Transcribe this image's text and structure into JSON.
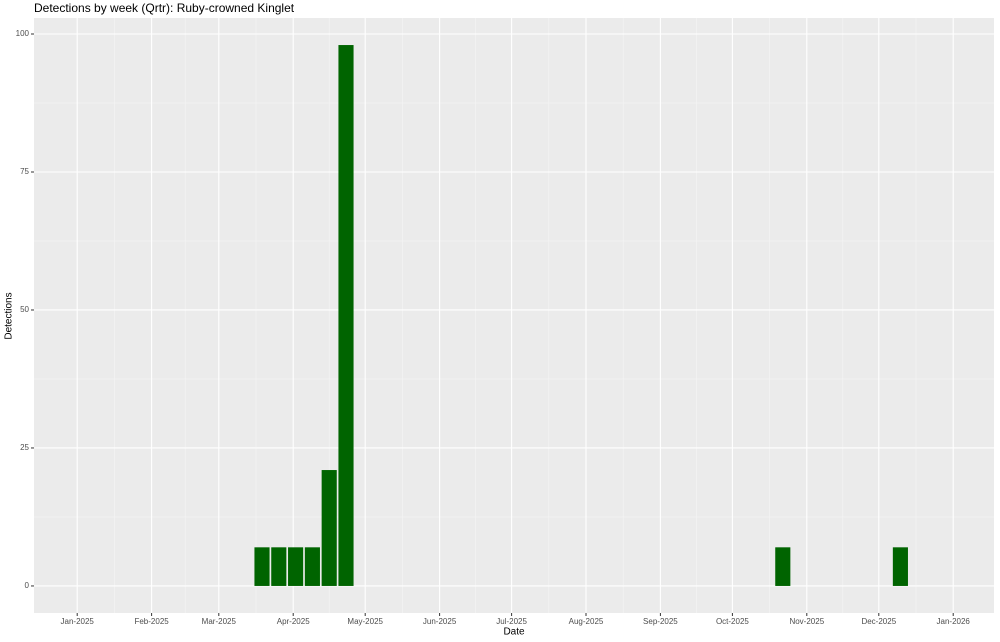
{
  "chart_data": {
    "type": "bar",
    "title": "Detections by week (Qrtr): Ruby-crowned Kinglet",
    "x_label": "Date",
    "y_label": "Detections",
    "x": [
      77,
      84,
      91,
      98,
      105,
      112,
      294,
      343
    ],
    "values": [
      7,
      7,
      7,
      7,
      21,
      98,
      7,
      7
    ],
    "color": "#006400",
    "xlim": [
      -18,
      382
    ],
    "xticks": [
      {
        "value": 0,
        "label": "Jan-2025"
      },
      {
        "value": 31,
        "label": "Feb-2025"
      },
      {
        "value": 59,
        "label": "Mar-2025"
      },
      {
        "value": 90,
        "label": "Apr-2025"
      },
      {
        "value": 120,
        "label": "May-2025"
      },
      {
        "value": 151,
        "label": "Jun-2025"
      },
      {
        "value": 181,
        "label": "Jul-2025"
      },
      {
        "value": 212,
        "label": "Aug-2025"
      },
      {
        "value": 243,
        "label": "Sep-2025"
      },
      {
        "value": 273,
        "label": "Oct-2025"
      },
      {
        "value": 304,
        "label": "Nov-2025"
      },
      {
        "value": 334,
        "label": "Dec-2025"
      },
      {
        "value": 365,
        "label": "Jan-2026"
      }
    ],
    "ylim": [
      -4.9,
      102.9
    ],
    "yticks": [
      0,
      25,
      50,
      75,
      100
    ],
    "grid": true
  }
}
